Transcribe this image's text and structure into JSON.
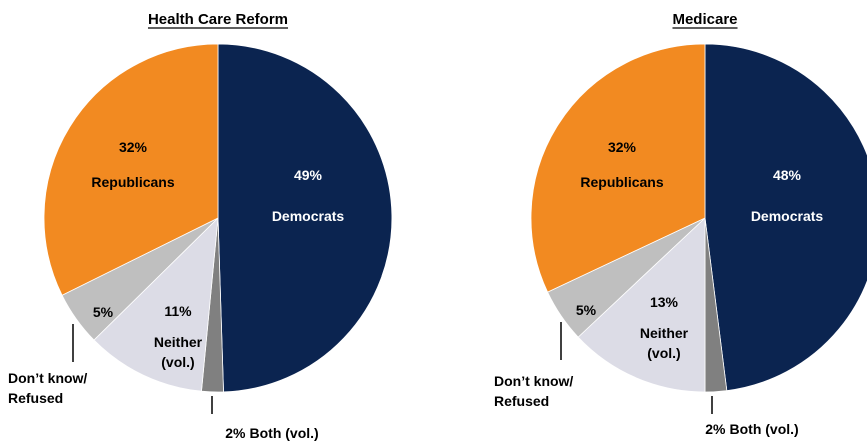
{
  "chart_data": [
    {
      "type": "pie",
      "title": "Health Care Reform",
      "slices": [
        {
          "key": "democrats",
          "value": 49,
          "percent_label": "49%",
          "name_label": "Democrats",
          "color": "#0b2450"
        },
        {
          "key": "both",
          "value": 2,
          "percent_label": "2%",
          "name_label": "Both (vol.)",
          "color": "#808080"
        },
        {
          "key": "neither",
          "value": 11,
          "percent_label": "11%",
          "name_label": "Neither (vol.)",
          "name_lines": [
            "Neither",
            "(vol.)"
          ],
          "color": "#dcdce6"
        },
        {
          "key": "dontknow",
          "value": 5,
          "percent_label": "5%",
          "name_label": "Don’t know/ Refused",
          "name_lines": [
            "Don’t know/",
            "Refused"
          ],
          "color": "#bfbfbf"
        },
        {
          "key": "republicans",
          "value": 32,
          "percent_label": "32%",
          "name_label": "Republicans",
          "color": "#f28a21"
        }
      ]
    },
    {
      "type": "pie",
      "title": "Medicare",
      "slices": [
        {
          "key": "democrats",
          "value": 48,
          "percent_label": "48%",
          "name_label": "Democrats",
          "color": "#0b2450"
        },
        {
          "key": "both",
          "value": 2,
          "percent_label": "2%",
          "name_label": "Both (vol.)",
          "color": "#808080"
        },
        {
          "key": "neither",
          "value": 13,
          "percent_label": "13%",
          "name_label": "Neither (vol.)",
          "name_lines": [
            "Neither",
            "(vol.)"
          ],
          "color": "#dcdce6"
        },
        {
          "key": "dontknow",
          "value": 5,
          "percent_label": "5%",
          "name_label": "Don’t know/ Refused",
          "name_lines": [
            "Don’t know/",
            "Refused"
          ],
          "color": "#bfbfbf"
        },
        {
          "key": "republicans",
          "value": 32,
          "percent_label": "32%",
          "name_label": "Republicans",
          "color": "#f28a21"
        }
      ]
    }
  ]
}
